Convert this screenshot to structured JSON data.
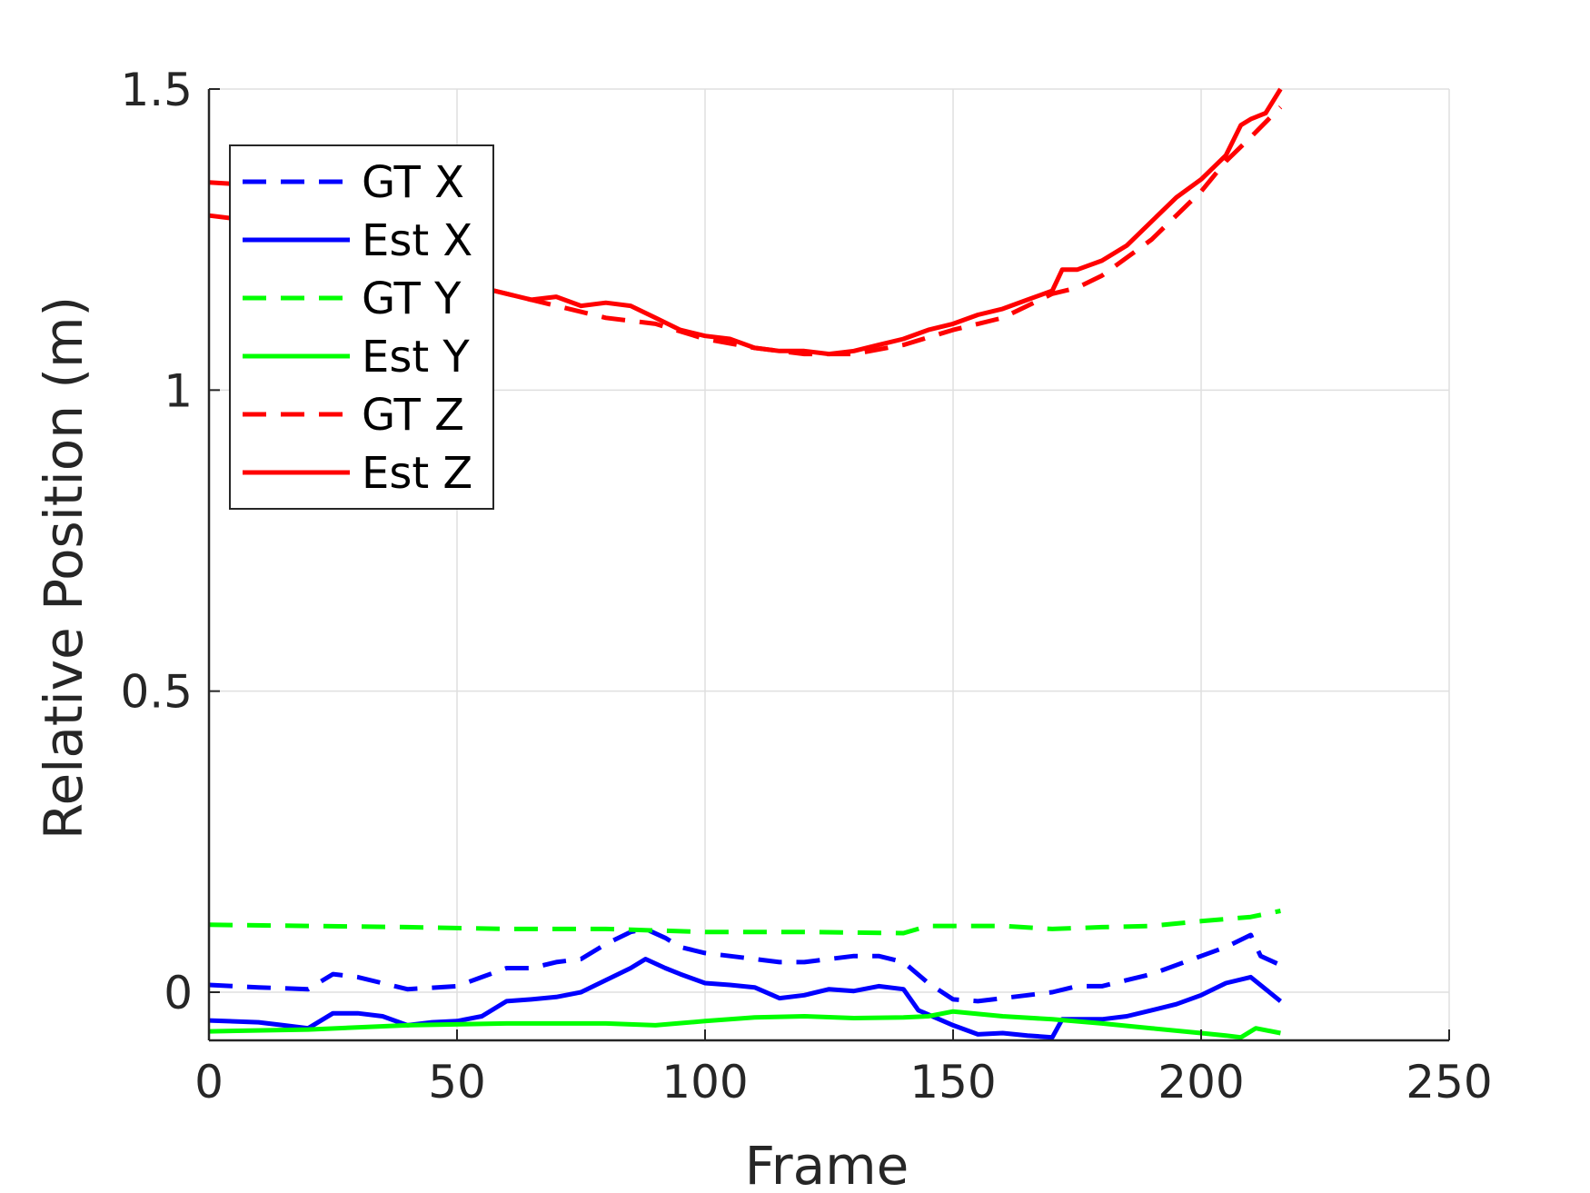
{
  "chart_data": {
    "type": "line",
    "title": "",
    "xlabel": "Frame",
    "ylabel": "Relative Position (m)",
    "xlim": [
      0,
      250
    ],
    "ylim": [
      -0.08,
      1.5
    ],
    "xticks": [
      0,
      50,
      100,
      150,
      200,
      250
    ],
    "xtick_labels": [
      "0",
      "50",
      "100",
      "150",
      "200",
      "250"
    ],
    "yticks": [
      0,
      0.5,
      1,
      1.5
    ],
    "ytick_labels": [
      "0",
      "0.5",
      "1",
      "1.5"
    ],
    "grid": true,
    "legend_position": "top-left",
    "series": [
      {
        "name": "GT X",
        "color": "#0000ff",
        "style": "dashed",
        "points": [
          [
            0,
            0.012
          ],
          [
            10,
            0.008
          ],
          [
            20,
            0.005
          ],
          [
            25,
            0.03
          ],
          [
            30,
            0.025
          ],
          [
            40,
            0.005
          ],
          [
            50,
            0.01
          ],
          [
            55,
            0.025
          ],
          [
            60,
            0.04
          ],
          [
            65,
            0.04
          ],
          [
            70,
            0.05
          ],
          [
            75,
            0.055
          ],
          [
            80,
            0.08
          ],
          [
            85,
            0.1
          ],
          [
            88,
            0.105
          ],
          [
            92,
            0.09
          ],
          [
            95,
            0.075
          ],
          [
            100,
            0.065
          ],
          [
            105,
            0.06
          ],
          [
            110,
            0.055
          ],
          [
            115,
            0.05
          ],
          [
            120,
            0.05
          ],
          [
            125,
            0.055
          ],
          [
            130,
            0.06
          ],
          [
            135,
            0.06
          ],
          [
            140,
            0.05
          ],
          [
            145,
            0.015
          ],
          [
            150,
            -0.012
          ],
          [
            155,
            -0.015
          ],
          [
            160,
            -0.01
          ],
          [
            165,
            -0.005
          ],
          [
            170,
            0.0
          ],
          [
            175,
            0.01
          ],
          [
            180,
            0.01
          ],
          [
            185,
            0.02
          ],
          [
            190,
            0.03
          ],
          [
            195,
            0.045
          ],
          [
            200,
            0.06
          ],
          [
            205,
            0.075
          ],
          [
            210,
            0.095
          ],
          [
            212,
            0.06
          ],
          [
            216,
            0.045
          ]
        ]
      },
      {
        "name": "Est X",
        "color": "#0000ff",
        "style": "solid",
        "points": [
          [
            0,
            -0.047
          ],
          [
            10,
            -0.05
          ],
          [
            15,
            -0.055
          ],
          [
            20,
            -0.06
          ],
          [
            25,
            -0.035
          ],
          [
            30,
            -0.035
          ],
          [
            35,
            -0.04
          ],
          [
            40,
            -0.055
          ],
          [
            45,
            -0.05
          ],
          [
            50,
            -0.048
          ],
          [
            55,
            -0.04
          ],
          [
            60,
            -0.015
          ],
          [
            65,
            -0.012
          ],
          [
            70,
            -0.008
          ],
          [
            75,
            0.0
          ],
          [
            80,
            0.02
          ],
          [
            85,
            0.04
          ],
          [
            88,
            0.055
          ],
          [
            92,
            0.04
          ],
          [
            95,
            0.03
          ],
          [
            100,
            0.015
          ],
          [
            105,
            0.012
          ],
          [
            110,
            0.008
          ],
          [
            115,
            -0.01
          ],
          [
            120,
            -0.005
          ],
          [
            125,
            0.005
          ],
          [
            130,
            0.002
          ],
          [
            135,
            0.01
          ],
          [
            140,
            0.005
          ],
          [
            143,
            -0.03
          ],
          [
            150,
            -0.055
          ],
          [
            155,
            -0.07
          ],
          [
            160,
            -0.068
          ],
          [
            165,
            -0.072
          ],
          [
            170,
            -0.075
          ],
          [
            172,
            -0.045
          ],
          [
            175,
            -0.045
          ],
          [
            180,
            -0.045
          ],
          [
            185,
            -0.04
          ],
          [
            190,
            -0.03
          ],
          [
            195,
            -0.02
          ],
          [
            200,
            -0.005
          ],
          [
            205,
            0.015
          ],
          [
            210,
            0.025
          ],
          [
            213,
            0.005
          ],
          [
            216,
            -0.015
          ]
        ]
      },
      {
        "name": "GT Y",
        "color": "#00ff00",
        "style": "dashed",
        "points": [
          [
            0,
            0.112
          ],
          [
            20,
            0.11
          ],
          [
            40,
            0.108
          ],
          [
            60,
            0.105
          ],
          [
            80,
            0.105
          ],
          [
            100,
            0.1
          ],
          [
            120,
            0.1
          ],
          [
            140,
            0.098
          ],
          [
            145,
            0.11
          ],
          [
            150,
            0.11
          ],
          [
            160,
            0.11
          ],
          [
            170,
            0.105
          ],
          [
            180,
            0.108
          ],
          [
            190,
            0.11
          ],
          [
            200,
            0.118
          ],
          [
            210,
            0.125
          ],
          [
            216,
            0.135
          ]
        ]
      },
      {
        "name": "Est Y",
        "color": "#00ff00",
        "style": "solid",
        "points": [
          [
            0,
            -0.065
          ],
          [
            20,
            -0.062
          ],
          [
            40,
            -0.055
          ],
          [
            60,
            -0.052
          ],
          [
            80,
            -0.052
          ],
          [
            90,
            -0.055
          ],
          [
            100,
            -0.048
          ],
          [
            110,
            -0.042
          ],
          [
            120,
            -0.04
          ],
          [
            130,
            -0.043
          ],
          [
            140,
            -0.042
          ],
          [
            145,
            -0.04
          ],
          [
            150,
            -0.032
          ],
          [
            160,
            -0.04
          ],
          [
            170,
            -0.045
          ],
          [
            180,
            -0.052
          ],
          [
            190,
            -0.06
          ],
          [
            200,
            -0.068
          ],
          [
            205,
            -0.072
          ],
          [
            208,
            -0.075
          ],
          [
            211,
            -0.06
          ],
          [
            216,
            -0.068
          ]
        ]
      },
      {
        "name": "GT Z",
        "color": "#ff0000",
        "style": "dashed",
        "points": [
          [
            0,
            1.345
          ],
          [
            10,
            1.34
          ],
          [
            20,
            1.3
          ],
          [
            30,
            1.25
          ],
          [
            40,
            1.21
          ],
          [
            50,
            1.18
          ],
          [
            60,
            1.16
          ],
          [
            70,
            1.14
          ],
          [
            80,
            1.12
          ],
          [
            90,
            1.11
          ],
          [
            100,
            1.085
          ],
          [
            110,
            1.07
          ],
          [
            120,
            1.06
          ],
          [
            130,
            1.06
          ],
          [
            140,
            1.075
          ],
          [
            150,
            1.1
          ],
          [
            160,
            1.12
          ],
          [
            170,
            1.16
          ],
          [
            175,
            1.17
          ],
          [
            180,
            1.19
          ],
          [
            190,
            1.25
          ],
          [
            200,
            1.33
          ],
          [
            205,
            1.38
          ],
          [
            210,
            1.42
          ],
          [
            216,
            1.47
          ]
        ]
      },
      {
        "name": "Est Z",
        "color": "#ff0000",
        "style": "solid",
        "points": [
          [
            0,
            1.29
          ],
          [
            10,
            1.28
          ],
          [
            20,
            1.26
          ],
          [
            30,
            1.24
          ],
          [
            40,
            1.2
          ],
          [
            50,
            1.18
          ],
          [
            55,
            1.17
          ],
          [
            60,
            1.16
          ],
          [
            65,
            1.15
          ],
          [
            70,
            1.155
          ],
          [
            75,
            1.14
          ],
          [
            80,
            1.145
          ],
          [
            85,
            1.14
          ],
          [
            90,
            1.12
          ],
          [
            95,
            1.1
          ],
          [
            100,
            1.09
          ],
          [
            105,
            1.085
          ],
          [
            110,
            1.07
          ],
          [
            115,
            1.065
          ],
          [
            120,
            1.065
          ],
          [
            125,
            1.06
          ],
          [
            130,
            1.065
          ],
          [
            135,
            1.075
          ],
          [
            140,
            1.085
          ],
          [
            145,
            1.1
          ],
          [
            150,
            1.11
          ],
          [
            155,
            1.125
          ],
          [
            160,
            1.135
          ],
          [
            165,
            1.15
          ],
          [
            170,
            1.165
          ],
          [
            172,
            1.2
          ],
          [
            175,
            1.2
          ],
          [
            180,
            1.215
          ],
          [
            185,
            1.24
          ],
          [
            190,
            1.28
          ],
          [
            195,
            1.32
          ],
          [
            200,
            1.35
          ],
          [
            205,
            1.39
          ],
          [
            208,
            1.44
          ],
          [
            210,
            1.45
          ],
          [
            213,
            1.46
          ],
          [
            216,
            1.5
          ]
        ]
      }
    ]
  }
}
